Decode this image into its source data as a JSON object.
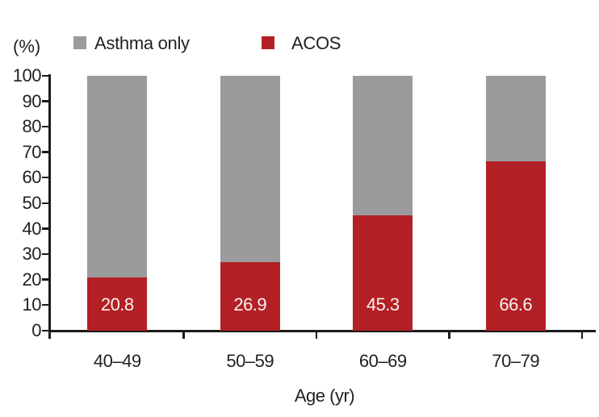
{
  "figure": {
    "background": "#ffffff",
    "axis_color": "#1e1a1b",
    "text_color": "#231f20",
    "value_label_color": "#f9f1f1"
  },
  "legend": {
    "items": [
      {
        "label": "Asthma only",
        "color": "#9b9a9c"
      },
      {
        "label": "ACOS",
        "color": "#b32025"
      }
    ]
  },
  "chart_data": {
    "type": "bar",
    "stacked": true,
    "title": "",
    "xlabel": "Age (yr)",
    "ylabel": "(%)",
    "ylim": [
      0,
      100
    ],
    "yticks": [
      0,
      10,
      20,
      30,
      40,
      50,
      60,
      70,
      80,
      90,
      100
    ],
    "grid": false,
    "legend_position": "top",
    "categories": [
      "40–49",
      "50–59",
      "60–69",
      "70–79"
    ],
    "series": [
      {
        "name": "ACOS",
        "color": "#b32025",
        "values": [
          20.8,
          26.9,
          45.3,
          66.6
        ],
        "value_labels": [
          "20.8",
          "26.9",
          "45.3",
          "66.6"
        ]
      },
      {
        "name": "Asthma only",
        "color": "#9b9a9c",
        "values": [
          79.2,
          73.1,
          54.7,
          33.4
        ]
      }
    ]
  }
}
